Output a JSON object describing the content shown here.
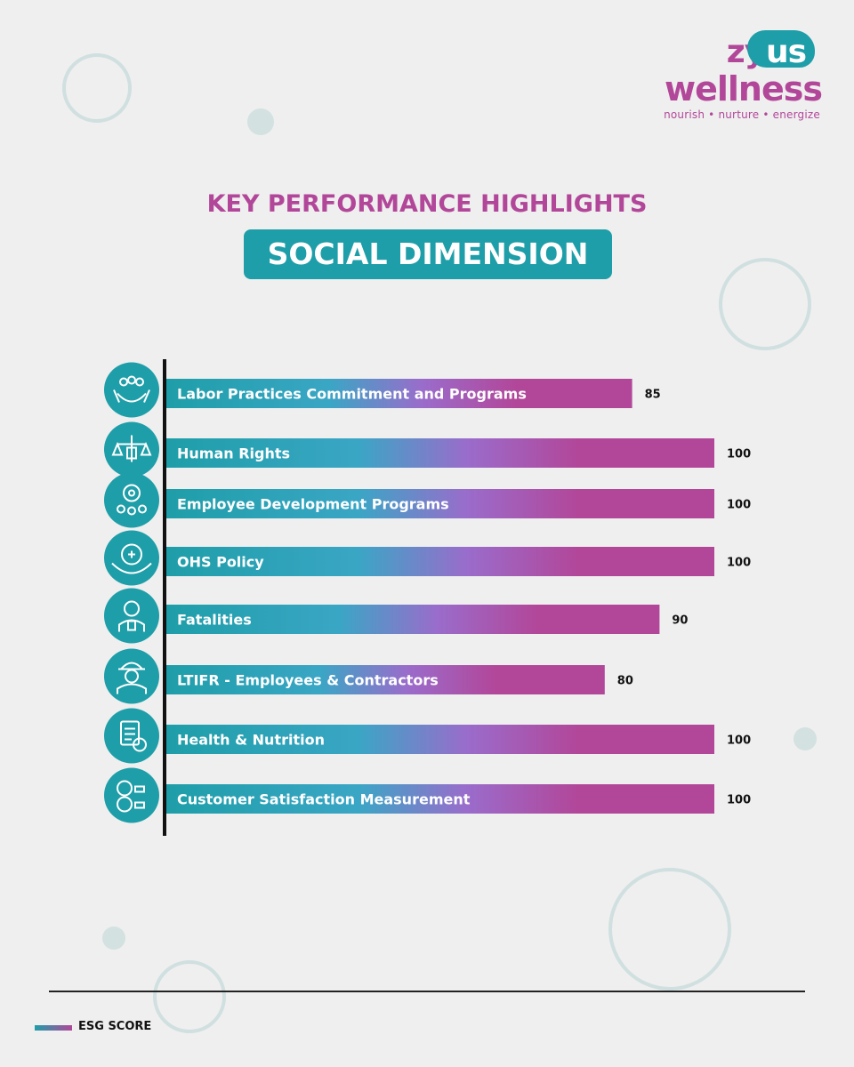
{
  "brand": {
    "name_part1": "zyd",
    "name_part2": "us",
    "name_line2": "wellness",
    "tagline": "nourish • nurture • energize"
  },
  "heading": "KEY PERFORMANCE HIGHLIGHTS",
  "subheading": "SOCIAL DIMENSION",
  "colors": {
    "teal": "#1e9ea8",
    "magenta": "#b2479a",
    "text": "#111111"
  },
  "chart_data": {
    "type": "bar",
    "orientation": "horizontal",
    "title": "SOCIAL DIMENSION",
    "categories": [
      "Labor Practices Commitment and Programs",
      "Human Rights",
      "Employee Development Programs",
      "OHS Policy",
      "Fatalities",
      "LTIFR - Employees & Contractors",
      "Health & Nutrition",
      "Customer Satisfaction Measurement"
    ],
    "icons": [
      "people-care-icon",
      "human-rights-icon",
      "employee-development-icon",
      "ohs-gear-icon",
      "worker-icon",
      "hard-hat-worker-icon",
      "nutrition-clipboard-icon",
      "customer-feedback-icon"
    ],
    "values": [
      85,
      100,
      100,
      100,
      90,
      80,
      100,
      100
    ],
    "series_name": "ESG SCORE",
    "xlim": [
      0,
      100
    ]
  },
  "legend": {
    "label": "ESG SCORE"
  }
}
